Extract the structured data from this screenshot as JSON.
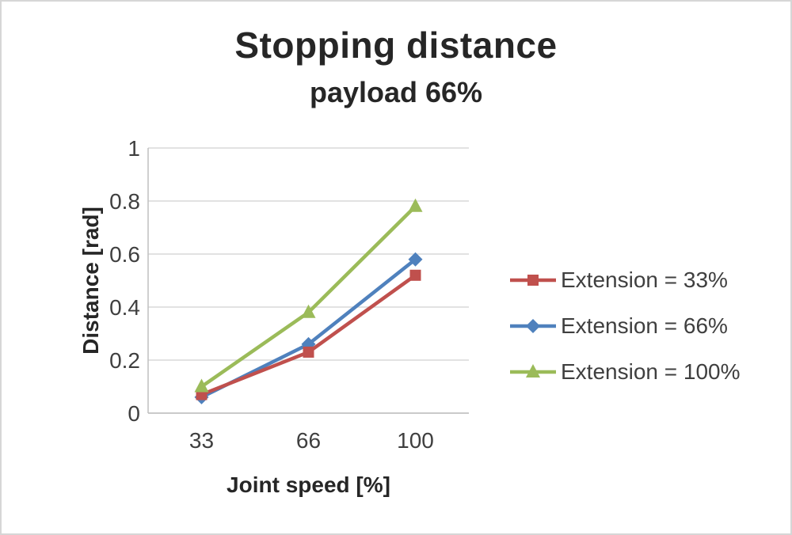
{
  "chart_data": {
    "type": "line",
    "title": "Stopping distance",
    "subtitle": "payload 66%",
    "xlabel": "Joint speed [%]",
    "ylabel": "Distance [rad]",
    "categories": [
      "33",
      "66",
      "100"
    ],
    "ylim": [
      0,
      1
    ],
    "ytick_step": 0.2,
    "grid": true,
    "legend_position": "right",
    "series": [
      {
        "name": "Extension = 33%",
        "marker": "square",
        "color": "#c0504d",
        "values": [
          0.07,
          0.23,
          0.52
        ]
      },
      {
        "name": "Extension = 66%",
        "marker": "diamond",
        "color": "#4f81bd",
        "values": [
          0.06,
          0.26,
          0.58
        ]
      },
      {
        "name": "Extension = 100%",
        "marker": "triangle",
        "color": "#9bbb59",
        "values": [
          0.1,
          0.38,
          0.78
        ]
      }
    ]
  },
  "style": {
    "grid_color": "#d9d9d9",
    "axis_color": "#bfbfbf",
    "text_color": "#3f3f3f",
    "title_color": "#262626",
    "frame_color": "#d6d6d6"
  }
}
